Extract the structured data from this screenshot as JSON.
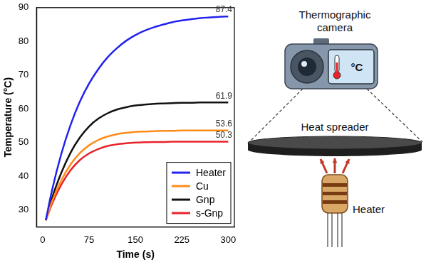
{
  "chart_data": {
    "type": "line",
    "xlabel": "Time (s)",
    "ylabel": "Temperature (°C)",
    "x": [
      5,
      15,
      30,
      45,
      60,
      75,
      90,
      105,
      120,
      135,
      150,
      165,
      180,
      195,
      210,
      225,
      240,
      255,
      270,
      285,
      300
    ],
    "series": [
      {
        "name": "Heater",
        "color": "#2222ee",
        "values": [
          27,
          35.8,
          46.6,
          55.2,
          62.1,
          67.5,
          71.8,
          75.3,
          78.0,
          80.2,
          81.9,
          83.2,
          84.2,
          85.0,
          85.7,
          86.2,
          86.6,
          86.9,
          87.1,
          87.3,
          87.4
        ]
      },
      {
        "name": "Cu",
        "color": "#ff8c1a",
        "values": [
          27,
          32.5,
          38.8,
          43.5,
          46.9,
          49.2,
          50.8,
          51.8,
          52.5,
          52.9,
          53.2,
          53.3,
          53.4,
          53.5,
          53.5,
          53.6,
          53.6,
          53.6,
          53.6,
          53.6,
          53.6
        ]
      },
      {
        "name": "Gnp",
        "color": "#111111",
        "values": [
          27,
          33.5,
          41.0,
          47.0,
          51.5,
          54.8,
          57.1,
          58.7,
          59.8,
          60.5,
          61.0,
          61.3,
          61.5,
          61.6,
          61.7,
          61.8,
          61.8,
          61.9,
          61.9,
          61.9,
          61.9
        ]
      },
      {
        "name": "s-Gnp",
        "color": "#e8222a",
        "values": [
          27,
          31.8,
          37.5,
          41.8,
          44.8,
          46.8,
          48.1,
          49.0,
          49.5,
          49.8,
          50.0,
          50.1,
          50.2,
          50.2,
          50.3,
          50.3,
          50.3,
          50.3,
          50.3,
          50.3,
          50.3
        ]
      }
    ],
    "xlim": [
      -10,
      310
    ],
    "xticks": [
      0,
      75,
      150,
      225,
      300
    ],
    "ylim": [
      25,
      90
    ],
    "yticks": [
      30,
      40,
      50,
      60,
      70,
      80,
      90
    ],
    "grid": false,
    "legend": "lower right",
    "annotations": [
      {
        "text": "87.4",
        "x": 300,
        "y": 87.4
      },
      {
        "text": "61.9",
        "x": 300,
        "y": 61.9
      },
      {
        "text": "53.6",
        "x": 300,
        "y": 53.6
      },
      {
        "text": "50.3",
        "x": 300,
        "y": 50.3
      }
    ]
  },
  "diagram": {
    "camera_label": "Thermographic camera",
    "camera_display": "°C",
    "spreader_label": "Heat spreader",
    "heater_label": "Heater"
  }
}
